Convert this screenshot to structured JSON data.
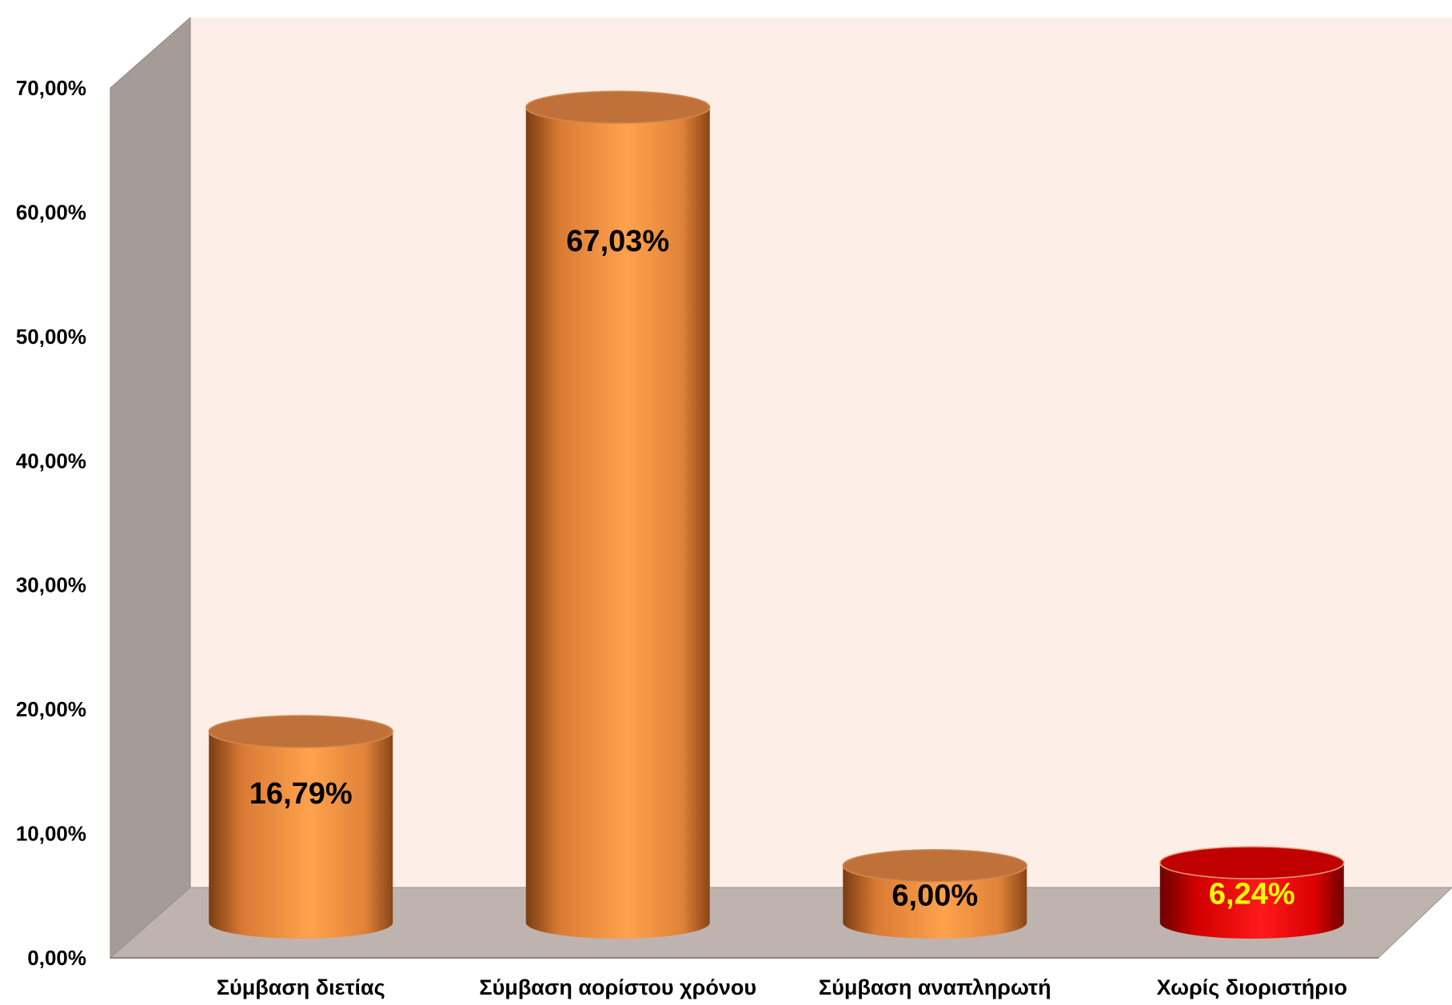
{
  "chart_data": {
    "type": "bar",
    "style": "3d-cylinder",
    "categories": [
      "Σύμβαση διετίας",
      "Σύμβαση αορίστου χρόνου",
      "Σύμβαση αναπληρωτή",
      "Χωρίς διοριστήριο"
    ],
    "values": [
      16.79,
      67.03,
      6.0,
      6.24
    ],
    "data_labels": [
      "16,79%",
      "67,03%",
      "6,00%",
      "6,24%"
    ],
    "ylim": [
      0,
      70
    ],
    "y_ticks": [
      0,
      10,
      20,
      30,
      40,
      50,
      60,
      70
    ],
    "y_tick_labels": [
      "0,00%",
      "10,00%",
      "20,00%",
      "30,00%",
      "40,00%",
      "50,00%",
      "60,00%",
      "70,00%"
    ],
    "title": "",
    "xlabel": "",
    "ylabel": "",
    "grid": false,
    "legend": "none",
    "colors": {
      "bar": "#F79646",
      "bar_dark": "#8B4513",
      "bar_top": "#C0713A",
      "highlight_bar": "#FF0000",
      "highlight_dark": "#8B0000",
      "highlight_top": "#C00000",
      "back_wall": "#FDEEE7",
      "side_wall": "#A59C98",
      "floor": "#BFB3AF",
      "label_default": "#000000",
      "label_highlight": "#FFFF00"
    },
    "highlight_index": 3
  }
}
